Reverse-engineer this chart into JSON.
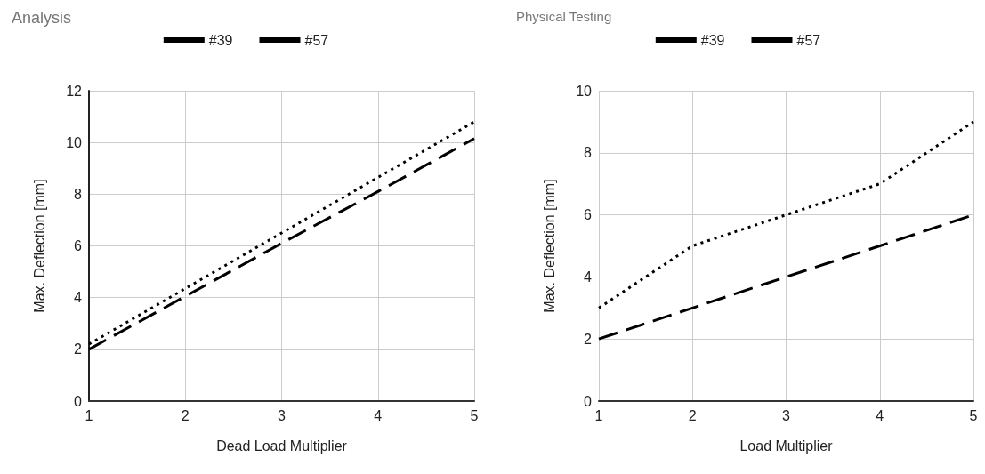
{
  "chart_data": [
    {
      "type": "line",
      "title": "Analysis",
      "xlabel": "Dead Load Multiplier",
      "ylabel": "Max. Deflection [mm]",
      "x": [
        1,
        2,
        3,
        4,
        5
      ],
      "xlim": [
        1,
        5
      ],
      "xticks": [
        1,
        2,
        3,
        4,
        5
      ],
      "ylim": [
        0,
        12
      ],
      "yticks": [
        0,
        2,
        4,
        6,
        8,
        10,
        12
      ],
      "grid": true,
      "legend": "top",
      "marker": "none",
      "series": [
        {
          "name": "#39",
          "color": "#000000",
          "line_style": "dashed",
          "values": [
            2.0,
            4.05,
            6.1,
            8.1,
            10.15
          ]
        },
        {
          "name": "#57",
          "color": "#000000",
          "line_style": "dotted",
          "values": [
            2.2,
            4.35,
            6.5,
            8.65,
            10.8
          ]
        }
      ]
    },
    {
      "type": "line",
      "title": "Physical Testing",
      "xlabel": "Load Multiplier",
      "ylabel": "Max. Deflection [mm]",
      "x": [
        1,
        2,
        3,
        4,
        5
      ],
      "xlim": [
        1,
        5
      ],
      "xticks": [
        1,
        2,
        3,
        4,
        5
      ],
      "ylim": [
        0,
        10
      ],
      "yticks": [
        0,
        2,
        4,
        6,
        8,
        10
      ],
      "grid": true,
      "legend": "top",
      "marker": "none",
      "series": [
        {
          "name": "#39",
          "color": "#000000",
          "line_style": "dashed",
          "values": [
            2,
            3,
            4,
            5,
            6
          ]
        },
        {
          "name": "#57",
          "color": "#000000",
          "line_style": "dotted",
          "values": [
            3,
            5,
            6,
            7,
            9
          ]
        }
      ]
    }
  ]
}
